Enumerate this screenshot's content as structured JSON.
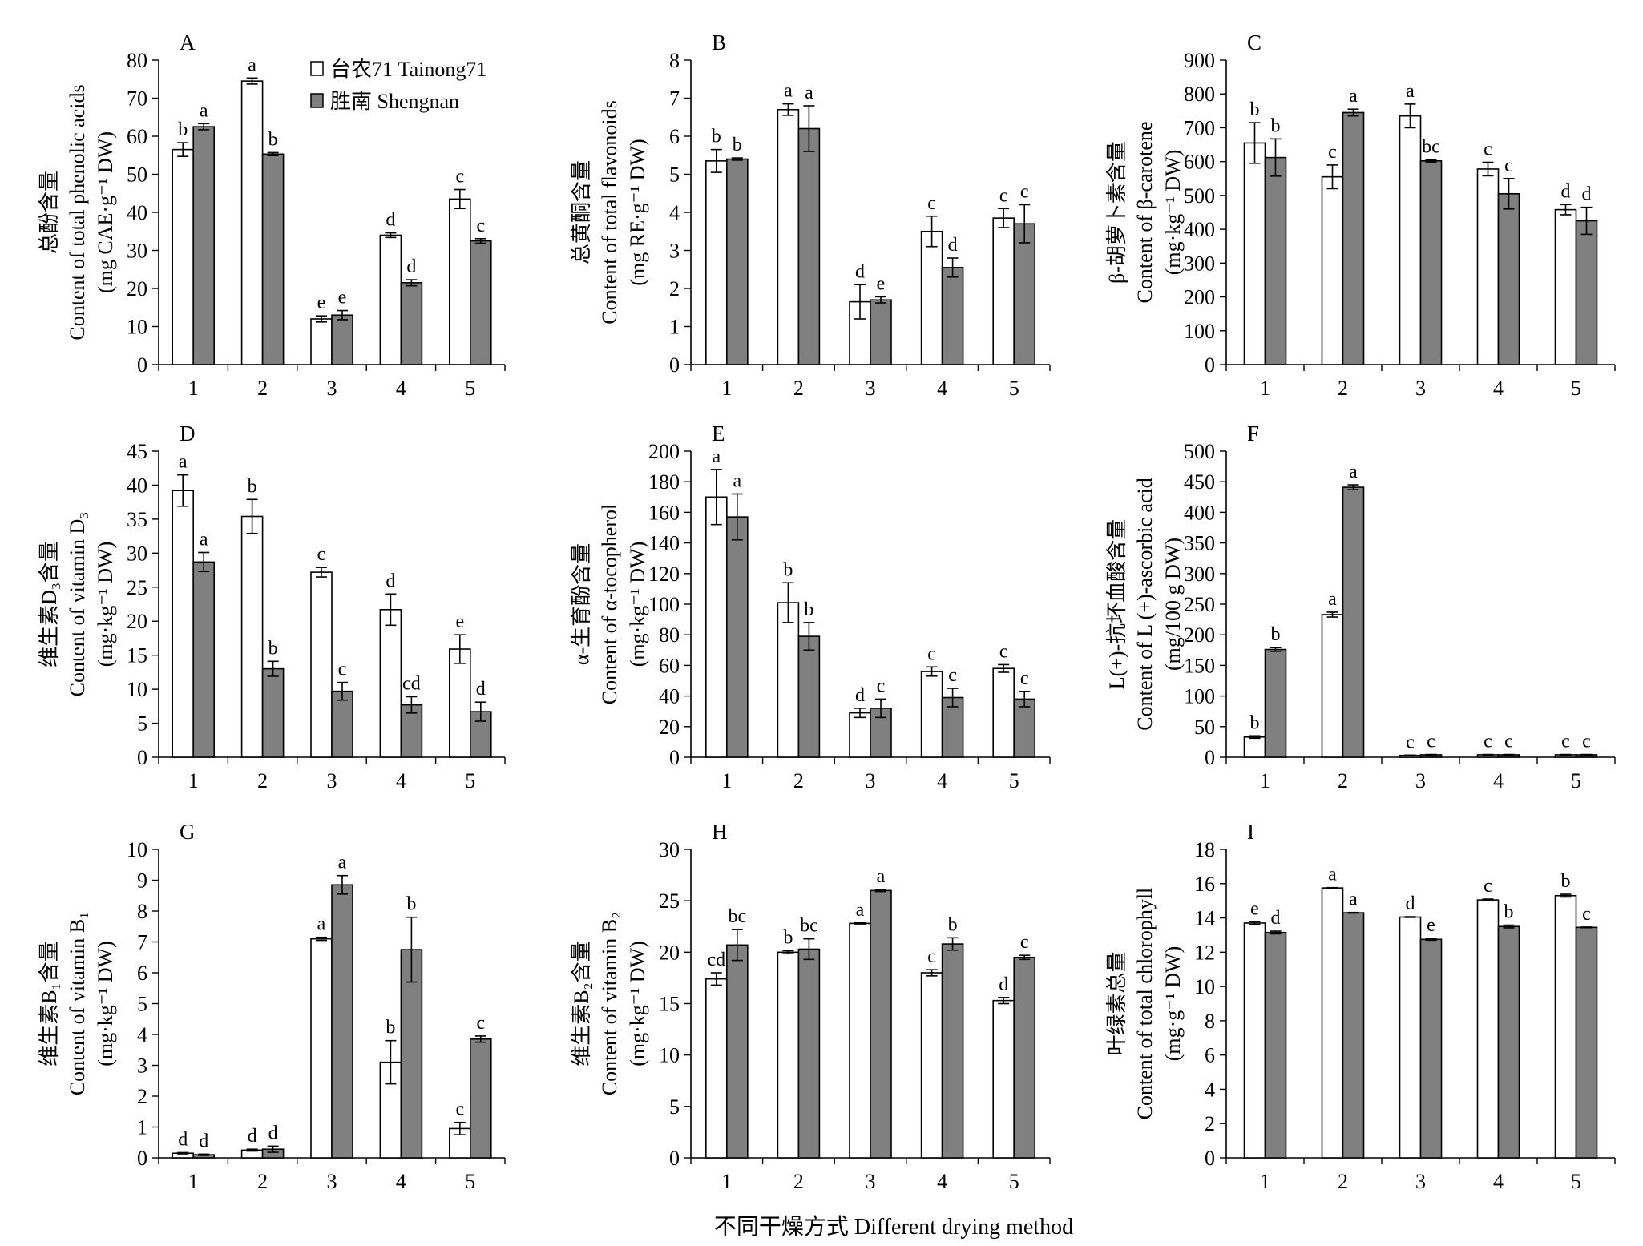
{
  "figure": {
    "x_axis_title": "不同干燥方式 Different drying method"
  },
  "legend": {
    "items": [
      {
        "label": "台农71 Tainong71",
        "color": "#ffffff"
      },
      {
        "label": "胜南 Shengnan",
        "color": "#808080"
      }
    ]
  },
  "colors": {
    "tainong": "#ffffff",
    "shengnan": "#808080",
    "stroke": "#000000"
  },
  "chart_data": [
    {
      "type": "bar",
      "panel": "A",
      "ylabel": [
        "总酚含量",
        "Content of total phenolic acids",
        "(mg CAE·g⁻¹ DW)"
      ],
      "categories": [
        "1",
        "2",
        "3",
        "4",
        "5"
      ],
      "ylim": [
        0,
        80
      ],
      "yticks": [
        0,
        10,
        20,
        30,
        40,
        50,
        60,
        70,
        80
      ],
      "series": [
        {
          "name": "台农71 Tainong71",
          "values": [
            56.5,
            74.5,
            12,
            34,
            43.5
          ],
          "errors": [
            1.8,
            0.8,
            0.8,
            0.6,
            2.5
          ],
          "letters": [
            "b",
            "a",
            "e",
            "d",
            "c"
          ]
        },
        {
          "name": "胜南 Shengnan",
          "values": [
            62.5,
            55.3,
            13,
            21.5,
            32.5
          ],
          "errors": [
            0.8,
            0.4,
            1.2,
            0.8,
            0.6
          ],
          "letters": [
            "a",
            "b",
            "e",
            "d",
            "c"
          ]
        }
      ]
    },
    {
      "type": "bar",
      "panel": "B",
      "ylabel": [
        "总黄酮含量",
        "Content of total flavonoids",
        "(mg RE·g⁻¹ DW)"
      ],
      "categories": [
        "1",
        "2",
        "3",
        "4",
        "5"
      ],
      "ylim": [
        0,
        8
      ],
      "yticks": [
        0,
        1,
        2,
        3,
        4,
        5,
        6,
        7,
        8
      ],
      "series": [
        {
          "name": "台农71 Tainong71",
          "values": [
            5.35,
            6.7,
            1.65,
            3.5,
            3.85
          ],
          "errors": [
            0.3,
            0.15,
            0.45,
            0.4,
            0.25
          ],
          "letters": [
            "b",
            "a",
            "d",
            "c",
            "c"
          ]
        },
        {
          "name": "胜南 Shengnan",
          "values": [
            5.4,
            6.2,
            1.7,
            2.55,
            3.7
          ],
          "errors": [
            0.03,
            0.6,
            0.08,
            0.25,
            0.5
          ],
          "letters": [
            "b",
            "a",
            "e",
            "d",
            "c"
          ]
        }
      ]
    },
    {
      "type": "bar",
      "panel": "C",
      "ylabel": [
        "β-胡萝卜素含量",
        "Content of β-carotene",
        "(mg·kg⁻¹ DW)"
      ],
      "categories": [
        "1",
        "2",
        "3",
        "4",
        "5"
      ],
      "ylim": [
        0,
        900
      ],
      "yticks": [
        0,
        100,
        200,
        300,
        400,
        500,
        600,
        700,
        800,
        900
      ],
      "series": [
        {
          "name": "台农71 Tainong71",
          "values": [
            655,
            555,
            735,
            578,
            458
          ],
          "errors": [
            60,
            35,
            35,
            20,
            15
          ],
          "letters": [
            "b",
            "c",
            "a",
            "c",
            "d"
          ]
        },
        {
          "name": "胜南 Shengnan",
          "values": [
            612,
            745,
            602,
            505,
            425
          ],
          "errors": [
            55,
            10,
            3,
            45,
            40
          ],
          "letters": [
            "b",
            "a",
            "bc",
            "c",
            "d"
          ]
        }
      ]
    },
    {
      "type": "bar",
      "panel": "D",
      "ylabel": [
        "维生素D₃含量",
        "Content of vitamin D₃",
        "(mg·kg⁻¹ DW)"
      ],
      "categories": [
        "1",
        "2",
        "3",
        "4",
        "5"
      ],
      "ylim": [
        0,
        45
      ],
      "yticks": [
        0,
        5,
        10,
        15,
        20,
        25,
        30,
        35,
        40,
        45
      ],
      "series": [
        {
          "name": "台农71 Tainong71",
          "values": [
            39.2,
            35.4,
            27.2,
            21.7,
            15.9
          ],
          "errors": [
            2.3,
            2.5,
            0.7,
            2.3,
            2.1
          ],
          "letters": [
            "a",
            "b",
            "c",
            "d",
            "e"
          ]
        },
        {
          "name": "胜南 Shengnan",
          "values": [
            28.7,
            13,
            9.7,
            7.7,
            6.7
          ],
          "errors": [
            1.4,
            1.1,
            1.3,
            1.2,
            1.4
          ],
          "letters": [
            "a",
            "b",
            "c",
            "cd",
            "d"
          ]
        }
      ]
    },
    {
      "type": "bar",
      "panel": "E",
      "ylabel": [
        "α-生育酚含量",
        "Content of α-tocopherol",
        "(mg·kg⁻¹ DW)"
      ],
      "categories": [
        "1",
        "2",
        "3",
        "4",
        "5"
      ],
      "ylim": [
        0,
        200
      ],
      "yticks": [
        0,
        20,
        40,
        60,
        80,
        100,
        120,
        140,
        160,
        180,
        200
      ],
      "series": [
        {
          "name": "台农71 Tainong71",
          "values": [
            170,
            101,
            29,
            56,
            58
          ],
          "errors": [
            18,
            13,
            3,
            3,
            2.5
          ],
          "letters": [
            "a",
            "b",
            "d",
            "c",
            "c"
          ]
        },
        {
          "name": "胜南 Shengnan",
          "values": [
            157,
            79,
            32,
            39,
            38
          ],
          "errors": [
            15,
            9,
            6,
            6,
            5
          ],
          "letters": [
            "a",
            "b",
            "c",
            "c",
            "c"
          ]
        }
      ]
    },
    {
      "type": "bar",
      "panel": "F",
      "ylabel": [
        "L(+)-抗坏血酸含量",
        "Content of L (+)-ascorbic acid",
        "(mg/100 g DW)"
      ],
      "categories": [
        "1",
        "2",
        "3",
        "4",
        "5"
      ],
      "ylim": [
        0,
        500
      ],
      "yticks": [
        0,
        50,
        100,
        150,
        200,
        250,
        300,
        350,
        400,
        450,
        500
      ],
      "series": [
        {
          "name": "台农71 Tainong71",
          "values": [
            33,
            233,
            3,
            4,
            4
          ],
          "errors": [
            2,
            4,
            0.5,
            0.5,
            0.5
          ],
          "letters": [
            "b",
            "a",
            "c",
            "c",
            "c"
          ]
        },
        {
          "name": "胜南 Shengnan",
          "values": [
            176,
            441,
            4,
            4,
            4
          ],
          "errors": [
            3,
            4,
            0.5,
            0.5,
            0.5
          ],
          "letters": [
            "b",
            "a",
            "c",
            "c",
            "c"
          ]
        }
      ]
    },
    {
      "type": "bar",
      "panel": "G",
      "ylabel": [
        "维生素B₁含量",
        "Content of vitamin B₁",
        "(mg·kg⁻¹ DW)"
      ],
      "categories": [
        "1",
        "2",
        "3",
        "4",
        "5"
      ],
      "ylim": [
        0,
        10
      ],
      "yticks": [
        0,
        1,
        2,
        3,
        4,
        5,
        6,
        7,
        8,
        9,
        10
      ],
      "series": [
        {
          "name": "台农71 Tainong71",
          "values": [
            0.15,
            0.25,
            7.1,
            3.1,
            0.95
          ],
          "errors": [
            0.02,
            0.03,
            0.05,
            0.7,
            0.2
          ],
          "letters": [
            "d",
            "d",
            "a",
            "b",
            "c"
          ]
        },
        {
          "name": "胜南 Shengnan",
          "values": [
            0.1,
            0.28,
            8.85,
            6.75,
            3.85
          ],
          "errors": [
            0.02,
            0.1,
            0.3,
            1.05,
            0.1
          ],
          "letters": [
            "d",
            "d",
            "a",
            "b",
            "c"
          ]
        }
      ]
    },
    {
      "type": "bar",
      "panel": "H",
      "ylabel": [
        "维生素B₂含量",
        "Content of vitamin B₂",
        "(mg·kg⁻¹ DW)"
      ],
      "categories": [
        "1",
        "2",
        "3",
        "4",
        "5"
      ],
      "ylim": [
        0,
        30
      ],
      "yticks": [
        0,
        5,
        10,
        15,
        20,
        25,
        30
      ],
      "series": [
        {
          "name": "台农71 Tainong71",
          "values": [
            17.4,
            20.0,
            22.8,
            18.0,
            15.3
          ],
          "errors": [
            0.6,
            0.15,
            0.05,
            0.3,
            0.3
          ],
          "letters": [
            "cd",
            "b",
            "a",
            "c",
            "d"
          ]
        },
        {
          "name": "胜南 Shengnan",
          "values": [
            20.7,
            20.3,
            26.0,
            20.8,
            19.5
          ],
          "errors": [
            1.5,
            1.0,
            0.1,
            0.6,
            0.2
          ],
          "letters": [
            "bc",
            "bc",
            "a",
            "b",
            "c"
          ]
        }
      ]
    },
    {
      "type": "bar",
      "panel": "I",
      "ylabel": [
        "叶绿素总量",
        "Content of total chlorophyll",
        "(mg·g⁻¹ DW)"
      ],
      "categories": [
        "1",
        "2",
        "3",
        "4",
        "5"
      ],
      "ylim": [
        0,
        18
      ],
      "yticks": [
        0,
        2,
        4,
        6,
        8,
        10,
        12,
        14,
        16,
        18
      ],
      "series": [
        {
          "name": "台农71 Tainong71",
          "values": [
            13.7,
            15.75,
            14.05,
            15.05,
            15.3
          ],
          "errors": [
            0.08,
            0.02,
            0.02,
            0.05,
            0.08
          ],
          "letters": [
            "e",
            "a",
            "d",
            "c",
            "b"
          ]
        },
        {
          "name": "胜南 Shengnan",
          "values": [
            13.15,
            14.3,
            12.75,
            13.5,
            13.45
          ],
          "errors": [
            0.08,
            0.02,
            0.05,
            0.08,
            0.02
          ],
          "letters": [
            "d",
            "a",
            "e",
            "b",
            "c"
          ]
        }
      ]
    }
  ]
}
